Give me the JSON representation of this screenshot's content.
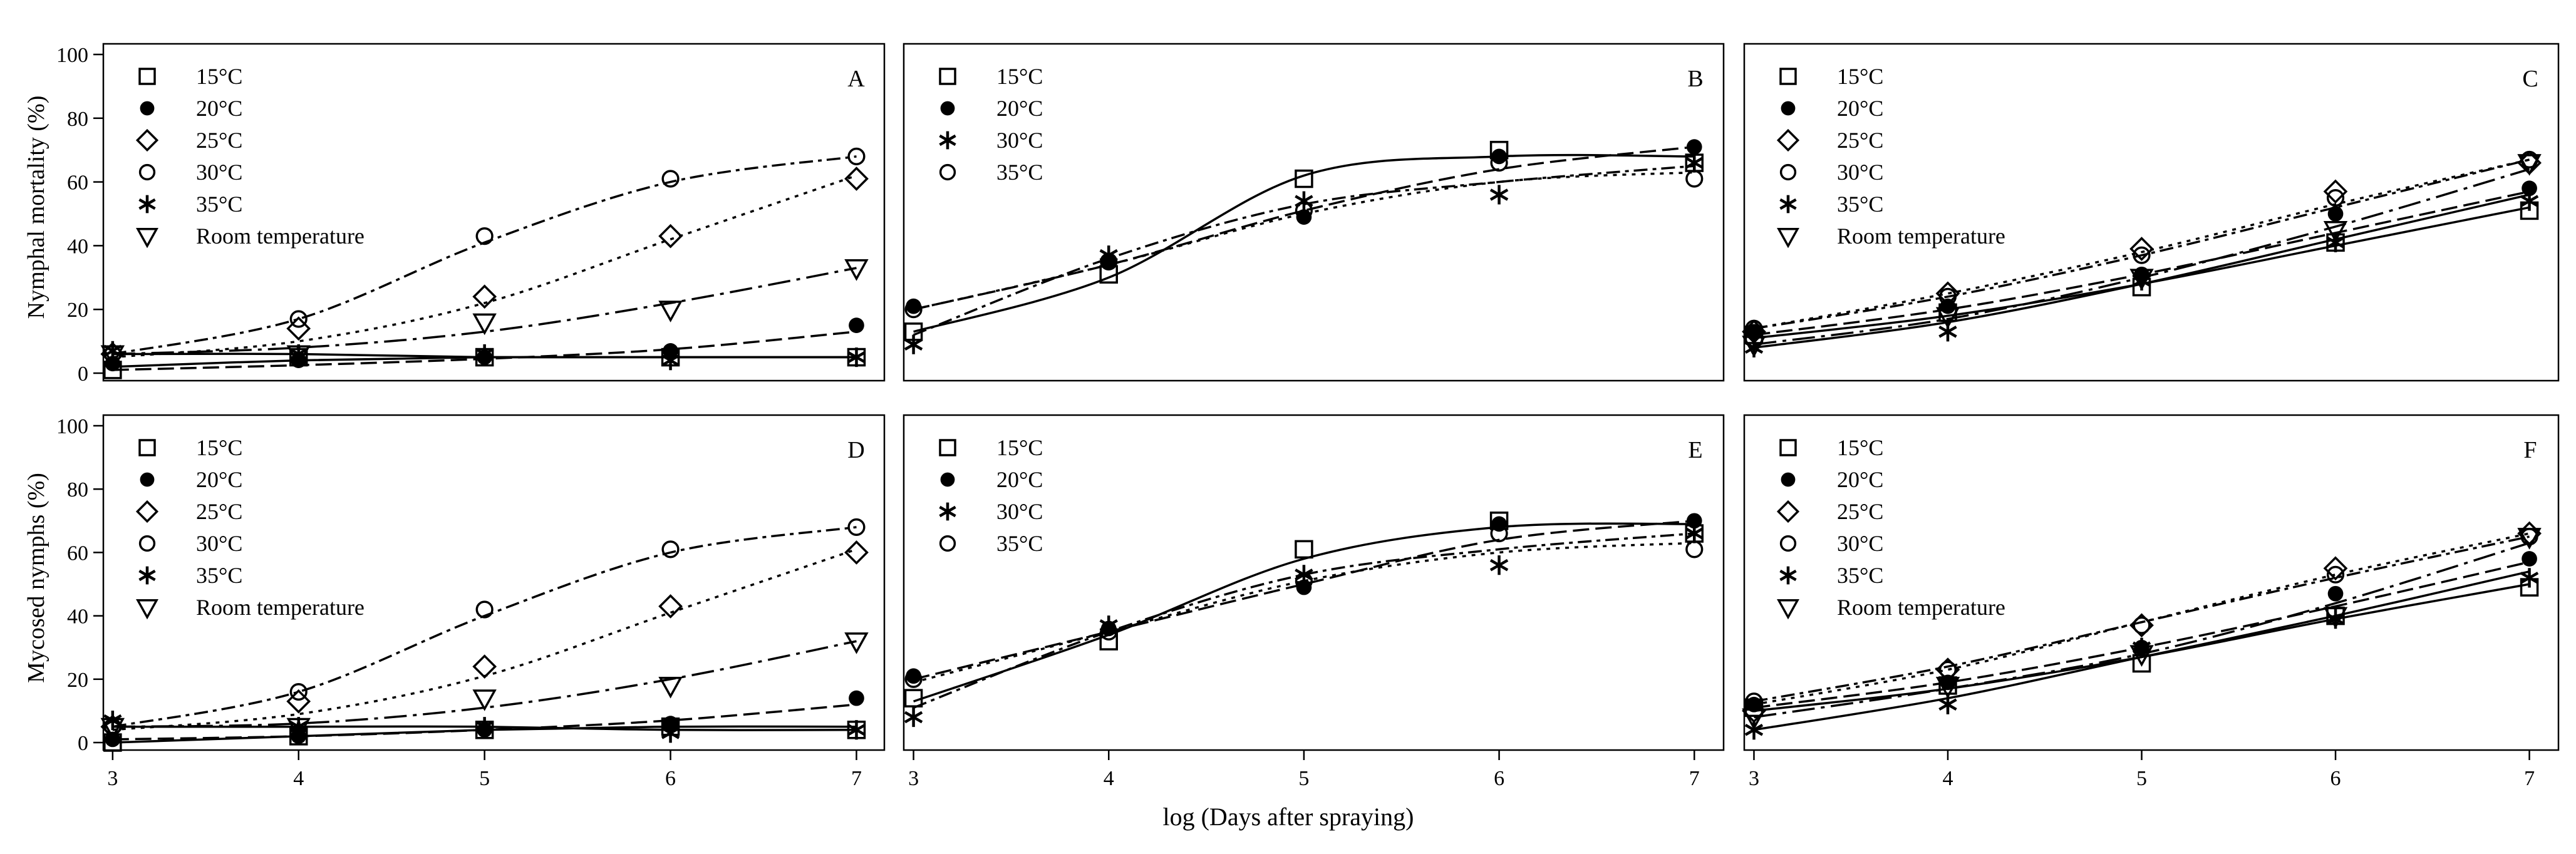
{
  "figure": {
    "ylabel_top": "Nymphal mortality (%)",
    "ylabel_bottom": "Mycosed nymphs (%)",
    "xlabel": "log (Days after spraying)",
    "ylim": [
      0,
      100
    ],
    "y_ticks": [
      "0",
      "20",
      "40",
      "60",
      "80",
      "100"
    ],
    "x_ticks": [
      "3",
      "4",
      "5",
      "6",
      "7"
    ]
  },
  "chart_data": [
    {
      "type": "line",
      "panel": "A",
      "x": [
        3,
        4,
        5,
        6,
        7
      ],
      "series": [
        {
          "name": "15°C",
          "marker": "square",
          "values": [
            1,
            5,
            5,
            5,
            5
          ],
          "fit": [
            2,
            4,
            5,
            5,
            5
          ]
        },
        {
          "name": "20°C",
          "marker": "dot",
          "values": [
            3,
            4,
            5,
            7,
            15
          ],
          "fit": [
            1,
            2.5,
            4.5,
            7.5,
            13
          ]
        },
        {
          "name": "25°C",
          "marker": "diamond",
          "values": [
            6,
            14,
            24,
            43,
            61
          ],
          "fit": [
            5,
            10,
            22,
            42,
            62
          ]
        },
        {
          "name": "30°C",
          "marker": "circle",
          "values": [
            6,
            17,
            43,
            61,
            68
          ],
          "fit": [
            6,
            17,
            41,
            60,
            68
          ]
        },
        {
          "name": "35°C",
          "marker": "asterisk",
          "values": [
            7,
            6,
            6,
            4,
            5
          ],
          "fit": [
            6,
            6,
            5,
            5,
            5
          ]
        },
        {
          "name": "Room temperature",
          "marker": "triangle",
          "values": [
            6,
            6,
            16,
            20,
            33
          ],
          "fit": [
            6,
            8,
            13,
            22,
            33
          ]
        }
      ]
    },
    {
      "type": "line",
      "panel": "B",
      "x": [
        3,
        4,
        5,
        6,
        7
      ],
      "series": [
        {
          "name": "15°C",
          "marker": "square",
          "values": [
            13,
            31,
            61,
            70,
            66
          ],
          "fit": [
            13,
            30,
            62,
            68,
            68
          ]
        },
        {
          "name": "20°C",
          "marker": "dot",
          "values": [
            21,
            35,
            49,
            68,
            71
          ],
          "fit": [
            20,
            34,
            51,
            64,
            71
          ]
        },
        {
          "name": "30°C",
          "marker": "asterisk",
          "values": [
            9,
            37,
            54,
            56,
            66
          ],
          "fit": [
            12,
            36,
            53,
            60,
            65
          ]
        },
        {
          "name": "35°C",
          "marker": "circle",
          "values": [
            20,
            35,
            51,
            66,
            61
          ],
          "fit": [
            20,
            34,
            50,
            60,
            63
          ]
        }
      ]
    },
    {
      "type": "line",
      "panel": "C",
      "x": [
        3,
        4,
        5,
        6,
        7
      ],
      "series": [
        {
          "name": "15°C",
          "marker": "square",
          "values": [
            12,
            19,
            27,
            41,
            51
          ],
          "fit": [
            11,
            18,
            28,
            40,
            52
          ]
        },
        {
          "name": "20°C",
          "marker": "dot",
          "values": [
            13,
            21,
            31,
            50,
            58
          ],
          "fit": [
            12,
            20,
            31,
            44,
            57
          ]
        },
        {
          "name": "25°C",
          "marker": "diamond",
          "values": [
            13,
            25,
            39,
            57,
            66
          ],
          "fit": [
            14,
            25,
            38,
            53,
            67
          ]
        },
        {
          "name": "30°C",
          "marker": "circle",
          "values": [
            14,
            24,
            37,
            55,
            67
          ],
          "fit": [
            14,
            24,
            37,
            52,
            67
          ]
        },
        {
          "name": "35°C",
          "marker": "asterisk",
          "values": [
            8,
            13,
            29,
            41,
            54
          ],
          "fit": [
            8,
            16,
            28,
            42,
            56
          ]
        },
        {
          "name": "Room temperature",
          "marker": "triangle",
          "values": [
            9,
            18,
            30,
            45,
            66
          ],
          "fit": [
            9,
            17,
            30,
            46,
            64
          ]
        }
      ]
    },
    {
      "type": "line",
      "panel": "D",
      "x": [
        3,
        4,
        5,
        6,
        7
      ],
      "series": [
        {
          "name": "15°C",
          "marker": "square",
          "values": [
            0,
            2,
            4,
            5,
            4
          ],
          "fit": [
            0,
            2,
            4,
            5,
            5
          ]
        },
        {
          "name": "20°C",
          "marker": "dot",
          "values": [
            1,
            2,
            4,
            6,
            14
          ],
          "fit": [
            1,
            2,
            4,
            7,
            12
          ]
        },
        {
          "name": "25°C",
          "marker": "diamond",
          "values": [
            5,
            13,
            24,
            43,
            60
          ],
          "fit": [
            4,
            9,
            21,
            41,
            61
          ]
        },
        {
          "name": "30°C",
          "marker": "circle",
          "values": [
            5,
            16,
            42,
            61,
            68
          ],
          "fit": [
            5,
            16,
            40,
            60,
            68
          ]
        },
        {
          "name": "35°C",
          "marker": "asterisk",
          "values": [
            7,
            5,
            5,
            3,
            4
          ],
          "fit": [
            5,
            5,
            5,
            4,
            4
          ]
        },
        {
          "name": "Room temperature",
          "marker": "triangle",
          "values": [
            5,
            5,
            14,
            18,
            32
          ],
          "fit": [
            5,
            6,
            11,
            20,
            32
          ]
        }
      ]
    },
    {
      "type": "line",
      "panel": "E",
      "x": [
        3,
        4,
        5,
        6,
        7
      ],
      "series": [
        {
          "name": "15°C",
          "marker": "square",
          "values": [
            14,
            32,
            61,
            70,
            66
          ],
          "fit": [
            13,
            34,
            58,
            68,
            69
          ]
        },
        {
          "name": "20°C",
          "marker": "dot",
          "values": [
            21,
            36,
            49,
            69,
            70
          ],
          "fit": [
            20,
            35,
            50,
            64,
            70
          ]
        },
        {
          "name": "30°C",
          "marker": "asterisk",
          "values": [
            8,
            37,
            53,
            56,
            66
          ],
          "fit": [
            11,
            35,
            53,
            61,
            66
          ]
        },
        {
          "name": "35°C",
          "marker": "circle",
          "values": [
            20,
            35,
            51,
            66,
            61
          ],
          "fit": [
            19,
            35,
            51,
            60,
            63
          ]
        }
      ]
    },
    {
      "type": "line",
      "panel": "F",
      "x": [
        3,
        4,
        5,
        6,
        7
      ],
      "series": [
        {
          "name": "15°C",
          "marker": "square",
          "values": [
            11,
            18,
            25,
            40,
            49
          ],
          "fit": [
            10,
            17,
            27,
            39,
            50
          ]
        },
        {
          "name": "20°C",
          "marker": "dot",
          "values": [
            12,
            19,
            30,
            47,
            58
          ],
          "fit": [
            11,
            19,
            30,
            43,
            57
          ]
        },
        {
          "name": "25°C",
          "marker": "diamond",
          "values": [
            10,
            23,
            37,
            55,
            66
          ],
          "fit": [
            12,
            23,
            38,
            53,
            66
          ]
        },
        {
          "name": "30°C",
          "marker": "circle",
          "values": [
            13,
            23,
            37,
            53,
            65
          ],
          "fit": [
            13,
            24,
            38,
            52,
            65
          ]
        },
        {
          "name": "35°C",
          "marker": "asterisk",
          "values": [
            4,
            12,
            30,
            39,
            52
          ],
          "fit": [
            4,
            14,
            27,
            40,
            54
          ]
        },
        {
          "name": "Room temperature",
          "marker": "triangle",
          "values": [
            8,
            18,
            28,
            40,
            65
          ],
          "fit": [
            8,
            17,
            28,
            44,
            63
          ]
        }
      ]
    }
  ]
}
